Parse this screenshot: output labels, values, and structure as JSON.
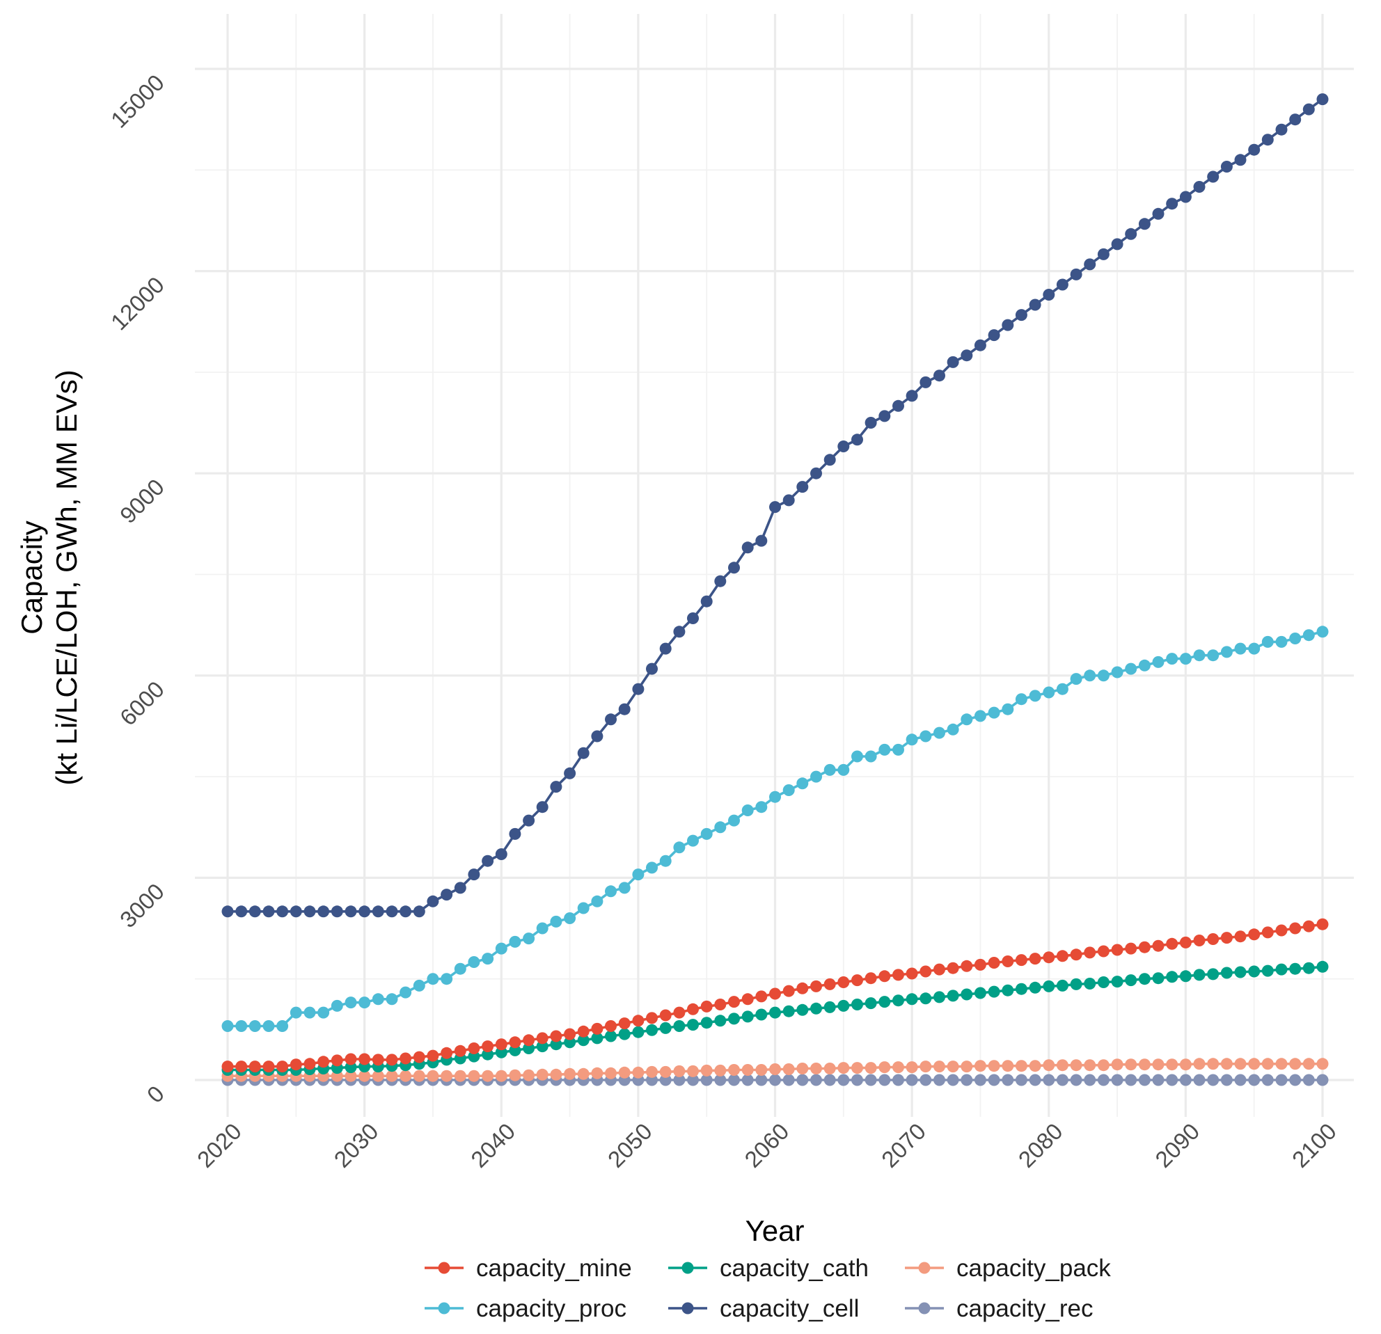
{
  "chart_data": {
    "type": "line",
    "title": "",
    "xlabel": "Year",
    "ylabel_line1": "Capacity",
    "ylabel_line2": "(kt Li/LCE/LOH, GWh, MM EVs)",
    "xlim": [
      2020,
      2100
    ],
    "ylim": [
      0,
      15000
    ],
    "x_ticks": [
      2020,
      2030,
      2040,
      2050,
      2060,
      2070,
      2080,
      2090,
      2100
    ],
    "x_tick_labels": [
      "2020",
      "2030",
      "2040",
      "2050",
      "2060",
      "2070",
      "2080",
      "2090",
      "2100"
    ],
    "y_ticks": [
      0,
      3000,
      6000,
      9000,
      12000,
      15000
    ],
    "y_tick_labels": [
      "0",
      "3000",
      "6000",
      "9000",
      "12000",
      "15000"
    ],
    "grid": true,
    "legend_position": "bottom",
    "years_start": 2020,
    "years_end": 2100,
    "series": [
      {
        "name": "capacity_mine",
        "color": "#E64B35",
        "values": [
          200,
          200,
          200,
          200,
          200,
          230,
          240,
          270,
          290,
          310,
          310,
          300,
          300,
          320,
          340,
          360,
          400,
          430,
          470,
          500,
          530,
          560,
          590,
          620,
          650,
          680,
          720,
          760,
          800,
          840,
          880,
          920,
          960,
          1000,
          1050,
          1090,
          1120,
          1160,
          1200,
          1240,
          1280,
          1320,
          1360,
          1390,
          1420,
          1450,
          1480,
          1510,
          1540,
          1560,
          1580,
          1610,
          1640,
          1660,
          1690,
          1710,
          1740,
          1760,
          1780,
          1800,
          1820,
          1840,
          1860,
          1890,
          1910,
          1930,
          1950,
          1970,
          1990,
          2020,
          2040,
          2070,
          2090,
          2110,
          2130,
          2160,
          2190,
          2220,
          2250,
          2280,
          2310
        ]
      },
      {
        "name": "capacity_cath",
        "color": "#00A087",
        "values": [
          150,
          150,
          150,
          150,
          150,
          150,
          160,
          170,
          180,
          190,
          200,
          200,
          210,
          220,
          240,
          260,
          300,
          320,
          350,
          380,
          410,
          440,
          470,
          500,
          530,
          560,
          590,
          620,
          650,
          680,
          710,
          740,
          770,
          800,
          820,
          850,
          880,
          910,
          940,
          970,
          1000,
          1020,
          1040,
          1060,
          1080,
          1100,
          1120,
          1140,
          1160,
          1180,
          1200,
          1210,
          1230,
          1250,
          1270,
          1290,
          1310,
          1330,
          1350,
          1370,
          1390,
          1400,
          1420,
          1430,
          1450,
          1460,
          1480,
          1500,
          1510,
          1530,
          1540,
          1560,
          1570,
          1590,
          1600,
          1610,
          1620,
          1640,
          1650,
          1660,
          1680
        ]
      },
      {
        "name": "capacity_pack",
        "color": "#F39B7F",
        "values": [
          60,
          60,
          60,
          60,
          60,
          60,
          60,
          60,
          60,
          60,
          60,
          60,
          60,
          60,
          60,
          60,
          60,
          60,
          60,
          60,
          60,
          70,
          70,
          80,
          80,
          90,
          90,
          100,
          100,
          110,
          110,
          120,
          120,
          130,
          130,
          140,
          140,
          150,
          150,
          150,
          160,
          160,
          170,
          170,
          170,
          180,
          180,
          180,
          190,
          190,
          190,
          200,
          200,
          200,
          200,
          210,
          210,
          210,
          210,
          210,
          220,
          220,
          220,
          220,
          220,
          230,
          230,
          230,
          230,
          230,
          230,
          240,
          240,
          240,
          240,
          240,
          240,
          240,
          240,
          240,
          240
        ]
      },
      {
        "name": "capacity_proc",
        "color": "#4DBBD5",
        "values": [
          800,
          800,
          800,
          800,
          800,
          1000,
          1000,
          1000,
          1100,
          1150,
          1150,
          1200,
          1200,
          1300,
          1400,
          1500,
          1500,
          1650,
          1750,
          1800,
          1950,
          2050,
          2100,
          2250,
          2350,
          2400,
          2550,
          2650,
          2800,
          2850,
          3050,
          3150,
          3250,
          3450,
          3550,
          3650,
          3750,
          3850,
          4000,
          4050,
          4200,
          4300,
          4400,
          4500,
          4600,
          4600,
          4800,
          4800,
          4900,
          4900,
          5050,
          5100,
          5150,
          5200,
          5350,
          5400,
          5450,
          5500,
          5650,
          5700,
          5750,
          5800,
          5950,
          6000,
          6000,
          6050,
          6100,
          6150,
          6200,
          6250,
          6250,
          6300,
          6300,
          6350,
          6400,
          6400,
          6500,
          6500,
          6550,
          6600,
          6650
        ]
      },
      {
        "name": "capacity_cell",
        "color": "#3C5488",
        "values": [
          2500,
          2500,
          2500,
          2500,
          2500,
          2500,
          2500,
          2500,
          2500,
          2500,
          2500,
          2500,
          2500,
          2500,
          2500,
          2650,
          2750,
          2850,
          3050,
          3250,
          3350,
          3650,
          3850,
          4050,
          4350,
          4550,
          4850,
          5100,
          5350,
          5500,
          5800,
          6100,
          6400,
          6650,
          6850,
          7100,
          7400,
          7600,
          7900,
          8000,
          8500,
          8600,
          8800,
          9000,
          9200,
          9400,
          9500,
          9750,
          9850,
          10000,
          10150,
          10350,
          10450,
          10650,
          10750,
          10900,
          11050,
          11200,
          11350,
          11500,
          11650,
          11800,
          11950,
          12100,
          12250,
          12400,
          12550,
          12700,
          12850,
          13000,
          13100,
          13250,
          13400,
          13550,
          13650,
          13800,
          13950,
          14100,
          14250,
          14400,
          14550
        ]
      },
      {
        "name": "capacity_rec",
        "color": "#8491B4",
        "values": [
          0,
          0,
          0,
          0,
          0,
          0,
          0,
          0,
          0,
          0,
          0,
          0,
          0,
          0,
          0,
          0,
          0,
          0,
          0,
          0,
          0,
          0,
          0,
          0,
          0,
          0,
          0,
          0,
          0,
          0,
          0,
          0,
          0,
          0,
          0,
          0,
          0,
          0,
          0,
          0,
          0,
          0,
          0,
          0,
          0,
          0,
          0,
          0,
          0,
          0,
          0,
          0,
          0,
          0,
          0,
          0,
          0,
          0,
          0,
          0,
          0,
          0,
          0,
          0,
          0,
          0,
          0,
          0,
          0,
          0,
          0,
          0,
          0,
          0,
          0,
          0,
          0,
          0,
          0,
          0,
          0
        ]
      }
    ],
    "legend_rows": [
      [
        "capacity_mine",
        "capacity_cath",
        "capacity_pack"
      ],
      [
        "capacity_proc",
        "capacity_cell",
        "capacity_rec"
      ]
    ]
  }
}
